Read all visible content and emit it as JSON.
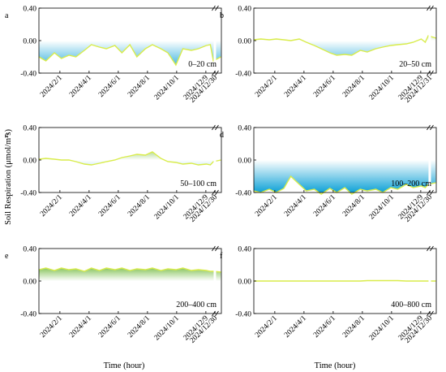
{
  "figure": {
    "ylabel": "Soil Respiration (μmol/m²s)",
    "xlabel": "Time (hour)",
    "colors": {
      "negative_fill_dark": "#1aa6d9",
      "positive_fill_dark": "#6fb83a",
      "outline": "#d9ec4a",
      "fill_light": "#ffffff"
    }
  },
  "chart_data": [
    {
      "type": "area",
      "panel": "a",
      "depth_label": "0–20 cm",
      "ylim": [
        -0.4,
        0.4
      ],
      "yticks": [
        "0.40",
        "0.00",
        "-0.40"
      ],
      "xtick_labels": [
        "2024/2/1",
        "2024/4/1",
        "2024/6/1",
        "2024/8/1",
        "2024/10/1",
        "2024/12/9",
        "2024/12/30"
      ],
      "x": [
        "2024/1/1",
        "2024/1/15",
        "2024/2/1",
        "2024/2/15",
        "2024/3/1",
        "2024/3/15",
        "2024/4/1",
        "2024/4/15",
        "2024/5/1",
        "2024/5/15",
        "2024/6/1",
        "2024/6/15",
        "2024/7/1",
        "2024/7/15",
        "2024/8/1",
        "2024/8/15",
        "2024/9/1",
        "2024/9/15",
        "2024/10/1",
        "2024/10/15",
        "2024/11/1",
        "2024/11/15",
        "2024/12/1",
        "2024/12/9",
        "2024/12/15",
        "2024/12/30"
      ],
      "y": [
        -0.2,
        -0.25,
        -0.15,
        -0.22,
        -0.18,
        -0.2,
        -0.12,
        -0.05,
        -0.08,
        -0.1,
        -0.06,
        -0.15,
        -0.05,
        -0.2,
        -0.1,
        -0.05,
        -0.1,
        -0.15,
        -0.3,
        -0.1,
        -0.12,
        -0.1,
        -0.06,
        -0.05,
        -0.25,
        -0.2
      ],
      "break_after": "2024/12/9"
    },
    {
      "type": "area",
      "panel": "b",
      "depth_label": "20–50 cm",
      "ylim": [
        -0.4,
        0.4
      ],
      "yticks": [
        "0.40",
        "0.00",
        "-0.40"
      ],
      "xtick_labels": [
        "2024/2/1",
        "2024/4/1",
        "2024/6/1",
        "2024/8/1",
        "2024/10/1",
        "2024/12/9",
        "2024/12/31"
      ],
      "x": [
        "2024/1/1",
        "2024/1/15",
        "2024/2/1",
        "2024/2/15",
        "2024/3/1",
        "2024/3/15",
        "2024/4/1",
        "2024/4/15",
        "2024/5/1",
        "2024/5/15",
        "2024/6/1",
        "2024/6/15",
        "2024/7/1",
        "2024/7/15",
        "2024/8/1",
        "2024/8/15",
        "2024/9/1",
        "2024/9/15",
        "2024/10/1",
        "2024/10/15",
        "2024/11/1",
        "2024/11/15",
        "2024/12/1",
        "2024/12/9",
        "2024/12/15",
        "2024/12/31"
      ],
      "y": [
        0.01,
        0.02,
        0.01,
        0.02,
        0.01,
        0.0,
        0.02,
        -0.02,
        -0.06,
        -0.1,
        -0.15,
        -0.18,
        -0.17,
        -0.18,
        -0.12,
        -0.14,
        -0.1,
        -0.08,
        -0.06,
        -0.05,
        -0.04,
        -0.02,
        0.02,
        -0.02,
        0.06,
        0.03
      ],
      "break_after": "2024/12/9"
    },
    {
      "type": "area",
      "panel": "c",
      "depth_label": "50–100 cm",
      "ylim": [
        -0.4,
        0.4
      ],
      "yticks": [
        "0.40",
        "0.00",
        "-0.40"
      ],
      "xtick_labels": [
        "2024/2/1",
        "2024/4/1",
        "2024/6/1",
        "2024/8/1",
        "2024/10/1",
        "2024/12/9",
        "2024/12/30"
      ],
      "x": [
        "2024/1/1",
        "2024/1/15",
        "2024/2/1",
        "2024/2/15",
        "2024/3/1",
        "2024/3/15",
        "2024/4/1",
        "2024/4/15",
        "2024/5/1",
        "2024/5/15",
        "2024/6/1",
        "2024/6/15",
        "2024/7/1",
        "2024/7/15",
        "2024/8/1",
        "2024/8/15",
        "2024/9/1",
        "2024/9/15",
        "2024/10/1",
        "2024/10/15",
        "2024/11/1",
        "2024/11/15",
        "2024/12/1",
        "2024/12/9",
        "2024/12/15",
        "2024/12/30"
      ],
      "y": [
        0.01,
        0.02,
        0.01,
        0.0,
        0.0,
        -0.02,
        -0.05,
        -0.06,
        -0.04,
        -0.02,
        0.0,
        0.03,
        0.05,
        0.07,
        0.06,
        0.1,
        0.02,
        -0.02,
        -0.03,
        -0.05,
        -0.04,
        -0.06,
        -0.05,
        -0.06,
        -0.02,
        0.0
      ],
      "break_after": "2024/12/9"
    },
    {
      "type": "area",
      "panel": "d",
      "depth_label": "100–200 cm",
      "ylim": [
        -0.4,
        0.4
      ],
      "yticks": [
        "0.40",
        "0.00",
        "-0.40"
      ],
      "xtick_labels": [
        "2024/2/1",
        "2024/4/1",
        "2024/6/1",
        "2024/8/1",
        "2024/10/1",
        "2024/12/9",
        "2024/12/30"
      ],
      "x": [
        "2024/1/1",
        "2024/1/15",
        "2024/2/1",
        "2024/2/15",
        "2024/3/1",
        "2024/3/15",
        "2024/4/1",
        "2024/4/15",
        "2024/5/1",
        "2024/5/15",
        "2024/6/1",
        "2024/6/15",
        "2024/7/1",
        "2024/7/15",
        "2024/8/1",
        "2024/8/15",
        "2024/9/1",
        "2024/9/15",
        "2024/10/1",
        "2024/10/15",
        "2024/11/1",
        "2024/11/15",
        "2024/12/1",
        "2024/12/9",
        "2024/12/15",
        "2024/12/30"
      ],
      "y": [
        -0.38,
        -0.4,
        -0.36,
        -0.4,
        -0.35,
        -0.2,
        -0.3,
        -0.38,
        -0.36,
        -0.42,
        -0.35,
        -0.4,
        -0.34,
        -0.42,
        -0.36,
        -0.38,
        -0.36,
        -0.4,
        -0.34,
        -0.36,
        -0.3,
        -0.34,
        -0.32,
        -0.34,
        -0.3,
        -0.28
      ],
      "break_after": "2024/12/9"
    },
    {
      "type": "area",
      "panel": "e",
      "depth_label": "200–400 cm",
      "ylim": [
        -0.4,
        0.4
      ],
      "yticks": [
        "0.40",
        "0.00",
        "-0.40"
      ],
      "xtick_labels": [
        "2024/2/1",
        "2024/4/1",
        "2024/6/1",
        "2024/8/1",
        "2024/10/1",
        "2024/12/9",
        "2024/12/30"
      ],
      "x": [
        "2024/1/1",
        "2024/1/15",
        "2024/2/1",
        "2024/2/15",
        "2024/3/1",
        "2024/3/15",
        "2024/4/1",
        "2024/4/15",
        "2024/5/1",
        "2024/5/15",
        "2024/6/1",
        "2024/6/15",
        "2024/7/1",
        "2024/7/15",
        "2024/8/1",
        "2024/8/15",
        "2024/9/1",
        "2024/9/15",
        "2024/10/1",
        "2024/10/15",
        "2024/11/1",
        "2024/11/15",
        "2024/12/1",
        "2024/12/9",
        "2024/12/15",
        "2024/12/30"
      ],
      "y": [
        0.14,
        0.16,
        0.13,
        0.16,
        0.14,
        0.15,
        0.12,
        0.16,
        0.13,
        0.16,
        0.14,
        0.16,
        0.13,
        0.15,
        0.14,
        0.16,
        0.13,
        0.15,
        0.14,
        0.16,
        0.13,
        0.14,
        0.13,
        0.12,
        0.12,
        0.11
      ],
      "break_after": "2024/12/9"
    },
    {
      "type": "area",
      "panel": "f",
      "depth_label": "400–800 cm",
      "ylim": [
        -0.4,
        0.4
      ],
      "yticks": [
        "0.40",
        "0.00",
        "-0.40"
      ],
      "xtick_labels": [
        "2024/2/1",
        "2024/4/1",
        "2024/6/1",
        "2024/8/1",
        "2024/10/1",
        "2024/12/9",
        "2024/12/30"
      ],
      "x": [
        "2024/1/1",
        "2024/1/15",
        "2024/2/1",
        "2024/2/15",
        "2024/3/1",
        "2024/3/15",
        "2024/4/1",
        "2024/4/15",
        "2024/5/1",
        "2024/5/15",
        "2024/6/1",
        "2024/6/15",
        "2024/7/1",
        "2024/7/15",
        "2024/8/1",
        "2024/8/15",
        "2024/9/1",
        "2024/9/15",
        "2024/10/1",
        "2024/10/15",
        "2024/11/1",
        "2024/11/15",
        "2024/12/1",
        "2024/12/9",
        "2024/12/15",
        "2024/12/30"
      ],
      "y": [
        0.0,
        0.0,
        0.0,
        0.0,
        0.0,
        0.0,
        0.0,
        0.0,
        0.0,
        0.0,
        0.0,
        0.0,
        0.0,
        0.0,
        0.0,
        0.005,
        0.005,
        0.005,
        0.005,
        0.005,
        0.0,
        0.0,
        0.0,
        0.0,
        0.0,
        0.0
      ],
      "break_after": "2024/12/9"
    }
  ]
}
